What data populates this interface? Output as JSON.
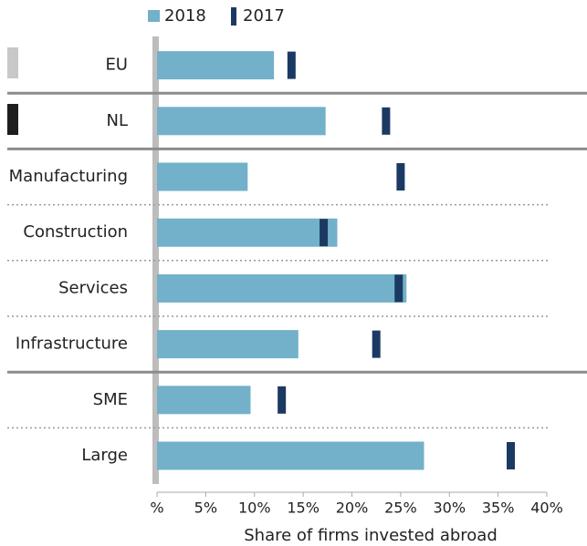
{
  "chart_data": {
    "type": "bar",
    "categories": [
      "EU",
      "NL",
      "Manufacturing",
      "Construction",
      "Services",
      "Infrastructure",
      "SME",
      "Large"
    ],
    "series": [
      {
        "name": "2018",
        "color": "#72b1c9",
        "values": [
          12.0,
          17.3,
          9.3,
          18.5,
          25.6,
          14.5,
          9.6,
          27.4
        ]
      },
      {
        "name": "2017",
        "color": "#1b3a63",
        "values": [
          13.8,
          23.5,
          25.0,
          17.1,
          24.8,
          22.5,
          12.8,
          36.3
        ]
      }
    ],
    "x_label": "Share of firms invested abroad",
    "xlim": [
      0,
      40
    ],
    "xticks": [
      {
        "value": 0,
        "label": "%"
      },
      {
        "value": 5,
        "label": "5%"
      },
      {
        "value": 10,
        "label": "10%"
      },
      {
        "value": 15,
        "label": "15%"
      },
      {
        "value": 20,
        "label": "20%"
      },
      {
        "value": 25,
        "label": "25%"
      },
      {
        "value": 30,
        "label": "30%"
      },
      {
        "value": 35,
        "label": "35%"
      },
      {
        "value": 40,
        "label": "40%"
      }
    ]
  }
}
